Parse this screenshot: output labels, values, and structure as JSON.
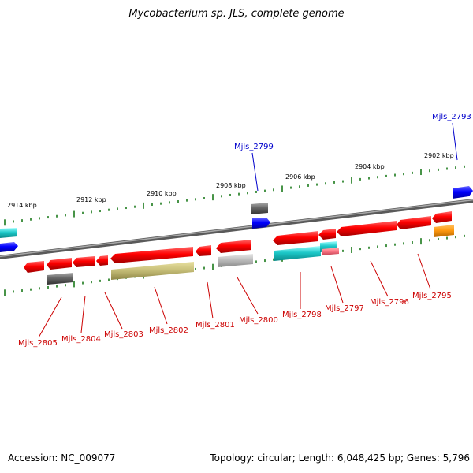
{
  "title": "Mycobacterium sp. JLS, complete genome",
  "footer": {
    "accession": "Accession: NC_009077",
    "info": "Topology: circular; Length: 6,048,425 bp; Genes: 5,796"
  },
  "colors": {
    "backbone": "#7a7a7a",
    "tick": "#1a7a1a",
    "label_forward": "#0000cc",
    "label_reverse": "#cc0000"
  },
  "ruler": [
    {
      "label": "2914 kbp"
    },
    {
      "label": "2912 kbp"
    },
    {
      "label": "2910 kbp"
    },
    {
      "label": "2908 kbp"
    },
    {
      "label": "2906 kbp"
    },
    {
      "label": "2904 kbp"
    },
    {
      "label": "2902 kbp"
    }
  ],
  "genes": [
    {
      "label": "Mjls_2793",
      "strand": "forward"
    },
    {
      "label": "Mjls_2799",
      "strand": "forward"
    },
    {
      "label": "Mjls_2795",
      "strand": "reverse"
    },
    {
      "label": "Mjls_2796",
      "strand": "reverse"
    },
    {
      "label": "Mjls_2797",
      "strand": "reverse"
    },
    {
      "label": "Mjls_2798",
      "strand": "reverse"
    },
    {
      "label": "Mjls_2800",
      "strand": "reverse"
    },
    {
      "label": "Mjls_2801",
      "strand": "reverse"
    },
    {
      "label": "Mjls_2802",
      "strand": "reverse"
    },
    {
      "label": "Mjls_2803",
      "strand": "reverse"
    },
    {
      "label": "Mjls_2804",
      "strand": "reverse"
    },
    {
      "label": "Mjls_2805",
      "strand": "reverse"
    }
  ]
}
